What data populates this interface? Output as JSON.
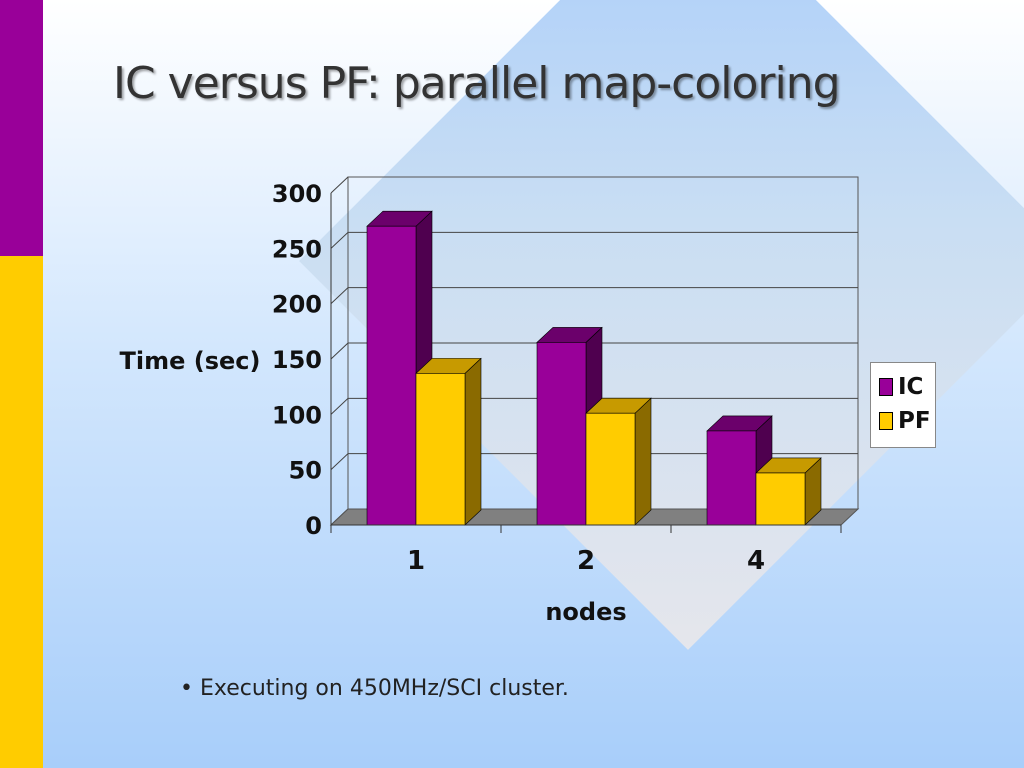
{
  "slide": {
    "title": "IC versus PF: parallel map-coloring",
    "bullet": "• Executing on 450MHz/SCI cluster."
  },
  "colors": {
    "ic_face": "#990099",
    "ic_top": "#6b006b",
    "ic_side": "#4f004f",
    "pf_face": "#ffcc00",
    "pf_top": "#c79a00",
    "pf_side": "#8a6a00",
    "sidebar_top": "#990099",
    "sidebar_bottom": "#ffcc00",
    "floor": "#808080"
  },
  "chart_data": {
    "type": "bar",
    "categories": [
      "1",
      "2",
      "4"
    ],
    "series": [
      {
        "name": "IC",
        "values": [
          270,
          165,
          85
        ]
      },
      {
        "name": "PF",
        "values": [
          137,
          101,
          47
        ]
      }
    ],
    "xlabel": "nodes",
    "ylabel": "Time (sec)",
    "ylim": [
      0,
      300
    ],
    "yticks": [
      "0",
      "50",
      "100",
      "150",
      "200",
      "250",
      "300"
    ],
    "grid": true,
    "three_d": true,
    "legend": {
      "position": "right",
      "entries": [
        "IC",
        "PF"
      ]
    }
  }
}
